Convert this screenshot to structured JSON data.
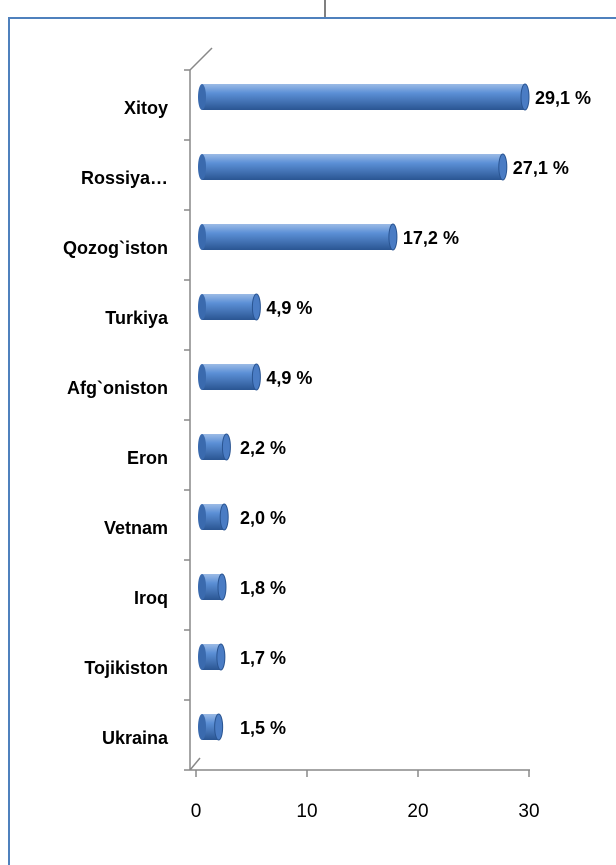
{
  "chart_data": {
    "type": "bar",
    "orientation": "horizontal",
    "categories": [
      "Xitoy",
      "Rossiya…",
      "Qozog`iston",
      "Turkiya",
      "Afg`oniston",
      "Eron",
      "Vetnam",
      "Iroq",
      "Tojikiston",
      "Ukraina"
    ],
    "values": [
      29.1,
      27.1,
      17.2,
      4.9,
      4.9,
      2.2,
      2.0,
      1.8,
      1.7,
      1.5
    ],
    "value_labels": [
      "29,1 %",
      "27,1 %",
      "17,2 %",
      "4,9 %",
      "4,9 %",
      "2,2 %",
      "2,0 %",
      "1,8 %",
      "1,7 %",
      "1,5 %"
    ],
    "color": "#4f81bd",
    "xlim": [
      0,
      30
    ],
    "xticks": [
      0,
      10,
      20,
      30
    ],
    "grid": false
  }
}
